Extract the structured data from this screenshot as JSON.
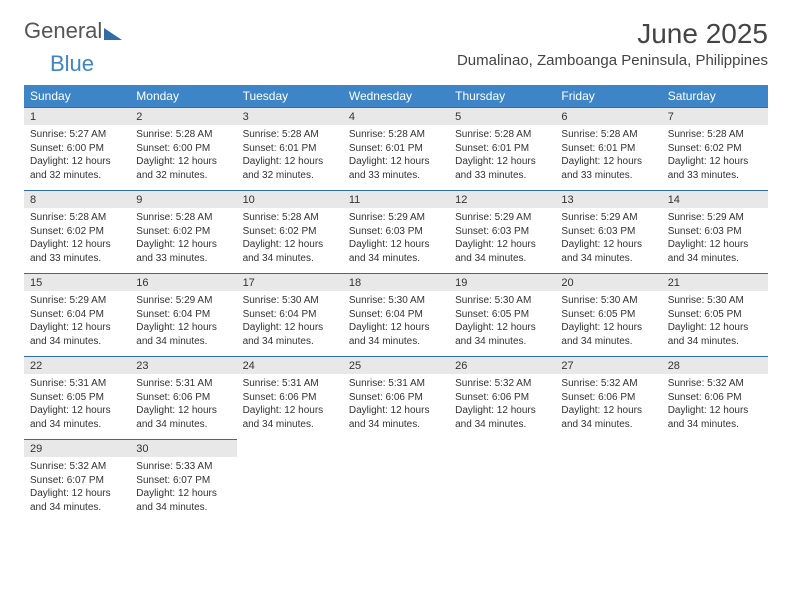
{
  "logo": {
    "part1": "General",
    "part2": "Blue"
  },
  "title": "June 2025",
  "location": "Dumalinao, Zamboanga Peninsula, Philippines",
  "colors": {
    "header_bg": "#3d85c6",
    "header_text": "#ffffff",
    "daynum_bg": "#e8e8e8",
    "daynum_border": "#2f6ca8",
    "text": "#333333",
    "logo_gray": "#555555",
    "logo_blue": "#3d85c6",
    "page_bg": "#ffffff"
  },
  "typography": {
    "month_title_pt": 28,
    "location_pt": 15,
    "dayhead_pt": 12,
    "daynum_pt": 11,
    "body_pt": 10
  },
  "day_headers": [
    "Sunday",
    "Monday",
    "Tuesday",
    "Wednesday",
    "Thursday",
    "Friday",
    "Saturday"
  ],
  "weeks": [
    [
      {
        "n": "1",
        "sr": "Sunrise: 5:27 AM",
        "ss": "Sunset: 6:00 PM",
        "dl": "Daylight: 12 hours and 32 minutes."
      },
      {
        "n": "2",
        "sr": "Sunrise: 5:28 AM",
        "ss": "Sunset: 6:00 PM",
        "dl": "Daylight: 12 hours and 32 minutes."
      },
      {
        "n": "3",
        "sr": "Sunrise: 5:28 AM",
        "ss": "Sunset: 6:01 PM",
        "dl": "Daylight: 12 hours and 32 minutes."
      },
      {
        "n": "4",
        "sr": "Sunrise: 5:28 AM",
        "ss": "Sunset: 6:01 PM",
        "dl": "Daylight: 12 hours and 33 minutes."
      },
      {
        "n": "5",
        "sr": "Sunrise: 5:28 AM",
        "ss": "Sunset: 6:01 PM",
        "dl": "Daylight: 12 hours and 33 minutes."
      },
      {
        "n": "6",
        "sr": "Sunrise: 5:28 AM",
        "ss": "Sunset: 6:01 PM",
        "dl": "Daylight: 12 hours and 33 minutes."
      },
      {
        "n": "7",
        "sr": "Sunrise: 5:28 AM",
        "ss": "Sunset: 6:02 PM",
        "dl": "Daylight: 12 hours and 33 minutes."
      }
    ],
    [
      {
        "n": "8",
        "sr": "Sunrise: 5:28 AM",
        "ss": "Sunset: 6:02 PM",
        "dl": "Daylight: 12 hours and 33 minutes."
      },
      {
        "n": "9",
        "sr": "Sunrise: 5:28 AM",
        "ss": "Sunset: 6:02 PM",
        "dl": "Daylight: 12 hours and 33 minutes."
      },
      {
        "n": "10",
        "sr": "Sunrise: 5:28 AM",
        "ss": "Sunset: 6:02 PM",
        "dl": "Daylight: 12 hours and 34 minutes."
      },
      {
        "n": "11",
        "sr": "Sunrise: 5:29 AM",
        "ss": "Sunset: 6:03 PM",
        "dl": "Daylight: 12 hours and 34 minutes."
      },
      {
        "n": "12",
        "sr": "Sunrise: 5:29 AM",
        "ss": "Sunset: 6:03 PM",
        "dl": "Daylight: 12 hours and 34 minutes."
      },
      {
        "n": "13",
        "sr": "Sunrise: 5:29 AM",
        "ss": "Sunset: 6:03 PM",
        "dl": "Daylight: 12 hours and 34 minutes."
      },
      {
        "n": "14",
        "sr": "Sunrise: 5:29 AM",
        "ss": "Sunset: 6:03 PM",
        "dl": "Daylight: 12 hours and 34 minutes."
      }
    ],
    [
      {
        "n": "15",
        "sr": "Sunrise: 5:29 AM",
        "ss": "Sunset: 6:04 PM",
        "dl": "Daylight: 12 hours and 34 minutes."
      },
      {
        "n": "16",
        "sr": "Sunrise: 5:29 AM",
        "ss": "Sunset: 6:04 PM",
        "dl": "Daylight: 12 hours and 34 minutes."
      },
      {
        "n": "17",
        "sr": "Sunrise: 5:30 AM",
        "ss": "Sunset: 6:04 PM",
        "dl": "Daylight: 12 hours and 34 minutes."
      },
      {
        "n": "18",
        "sr": "Sunrise: 5:30 AM",
        "ss": "Sunset: 6:04 PM",
        "dl": "Daylight: 12 hours and 34 minutes."
      },
      {
        "n": "19",
        "sr": "Sunrise: 5:30 AM",
        "ss": "Sunset: 6:05 PM",
        "dl": "Daylight: 12 hours and 34 minutes."
      },
      {
        "n": "20",
        "sr": "Sunrise: 5:30 AM",
        "ss": "Sunset: 6:05 PM",
        "dl": "Daylight: 12 hours and 34 minutes."
      },
      {
        "n": "21",
        "sr": "Sunrise: 5:30 AM",
        "ss": "Sunset: 6:05 PM",
        "dl": "Daylight: 12 hours and 34 minutes."
      }
    ],
    [
      {
        "n": "22",
        "sr": "Sunrise: 5:31 AM",
        "ss": "Sunset: 6:05 PM",
        "dl": "Daylight: 12 hours and 34 minutes."
      },
      {
        "n": "23",
        "sr": "Sunrise: 5:31 AM",
        "ss": "Sunset: 6:06 PM",
        "dl": "Daylight: 12 hours and 34 minutes."
      },
      {
        "n": "24",
        "sr": "Sunrise: 5:31 AM",
        "ss": "Sunset: 6:06 PM",
        "dl": "Daylight: 12 hours and 34 minutes."
      },
      {
        "n": "25",
        "sr": "Sunrise: 5:31 AM",
        "ss": "Sunset: 6:06 PM",
        "dl": "Daylight: 12 hours and 34 minutes."
      },
      {
        "n": "26",
        "sr": "Sunrise: 5:32 AM",
        "ss": "Sunset: 6:06 PM",
        "dl": "Daylight: 12 hours and 34 minutes."
      },
      {
        "n": "27",
        "sr": "Sunrise: 5:32 AM",
        "ss": "Sunset: 6:06 PM",
        "dl": "Daylight: 12 hours and 34 minutes."
      },
      {
        "n": "28",
        "sr": "Sunrise: 5:32 AM",
        "ss": "Sunset: 6:06 PM",
        "dl": "Daylight: 12 hours and 34 minutes."
      }
    ],
    [
      {
        "n": "29",
        "sr": "Sunrise: 5:32 AM",
        "ss": "Sunset: 6:07 PM",
        "dl": "Daylight: 12 hours and 34 minutes."
      },
      {
        "n": "30",
        "sr": "Sunrise: 5:33 AM",
        "ss": "Sunset: 6:07 PM",
        "dl": "Daylight: 12 hours and 34 minutes."
      },
      {
        "empty": true
      },
      {
        "empty": true
      },
      {
        "empty": true
      },
      {
        "empty": true
      },
      {
        "empty": true
      }
    ]
  ]
}
